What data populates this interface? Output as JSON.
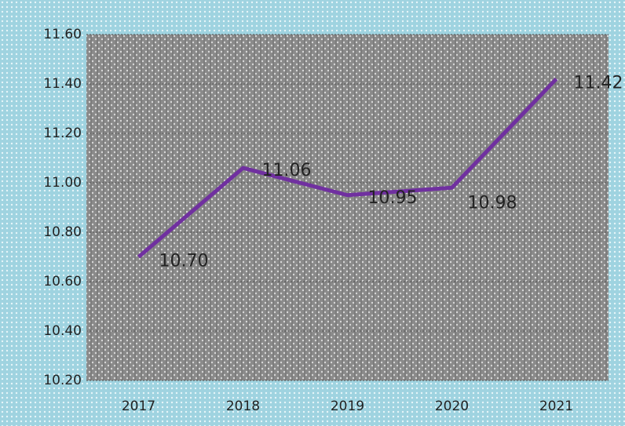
{
  "chart_data": {
    "type": "line",
    "categories": [
      "2017",
      "2018",
      "2019",
      "2020",
      "2021"
    ],
    "series": [
      {
        "color": "#7030a0",
        "values": [
          10.7,
          11.06,
          10.95,
          10.98,
          11.42
        ],
        "value_labels": [
          "10.70",
          "11.06",
          "10.95",
          "10.98",
          "11.42"
        ]
      }
    ],
    "ylim": [
      10.2,
      11.6
    ],
    "yticks": [
      {
        "value": 10.2,
        "label": "10.20"
      },
      {
        "value": 10.4,
        "label": "10.40"
      },
      {
        "value": 10.6,
        "label": "10.60"
      },
      {
        "value": 10.8,
        "label": "10.80"
      },
      {
        "value": 11.0,
        "label": "11.00"
      },
      {
        "value": 11.2,
        "label": "11.20"
      },
      {
        "value": 11.4,
        "label": "11.40"
      },
      {
        "value": 11.6,
        "label": "11.60"
      }
    ],
    "grid": true
  }
}
